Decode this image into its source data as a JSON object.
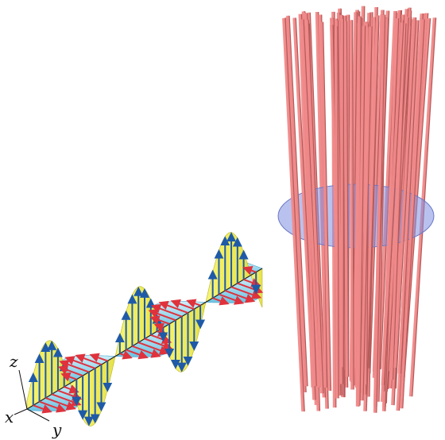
{
  "axes": {
    "x_label": "x",
    "y_label": "y",
    "z_label": "z"
  },
  "colors": {
    "e_field_fill": "#f2ef4a",
    "e_field_edge": "#b9b52a",
    "e_vector": "#1f5aa8",
    "b_field_fill": "#74cbe8",
    "b_field_fill_light": "#bfe8f6",
    "b_vector": "#e0323c",
    "beam_rod": "#f08a8a",
    "beam_rod_dark": "#b55a5a",
    "disk_fill": "#7f8fe0"
  }
}
